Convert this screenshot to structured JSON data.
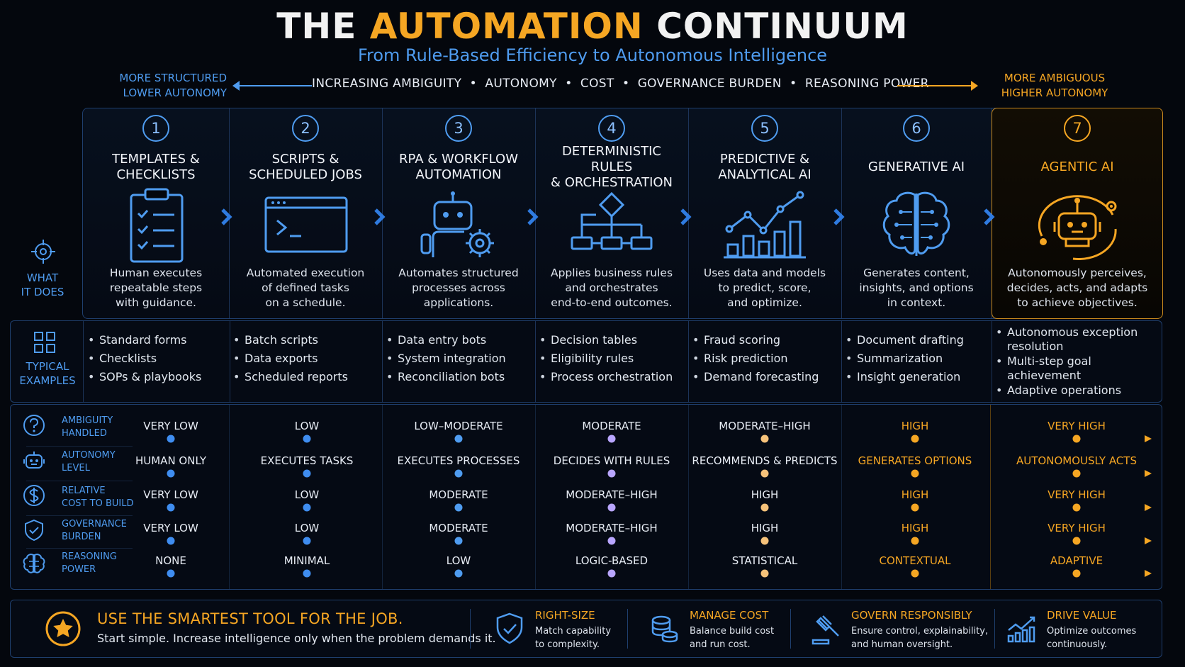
{
  "title": {
    "part1": "THE ",
    "part2": "AUTOMATION",
    "part3": " CONTINUUM"
  },
  "subtitle": "From Rule-Based Efficiency to Autonomous Intelligence",
  "axis": {
    "left": [
      "MORE STRUCTURED",
      "LOWER AUTONOMY"
    ],
    "middle": "INCREASING AMBIGUITY  •  AUTONOMY  •  COST  •  GOVERNANCE BURDEN  •  REASONING POWER",
    "right": [
      "MORE AMBIGUOUS",
      "HIGHER AUTONOMY"
    ]
  },
  "row_labels": {
    "what_it_does": [
      "WHAT",
      "IT DOES"
    ],
    "typical_examples": [
      "TYPICAL",
      "EXAMPLES"
    ]
  },
  "stages": [
    {
      "num": "1",
      "name": [
        "TEMPLATES &",
        "CHECKLISTS"
      ],
      "icon": "clipboard-checklist-icon",
      "desc": [
        "Human executes",
        "repeatable steps",
        "with guidance."
      ],
      "examples": [
        "Standard forms",
        "Checklists",
        "SOPs & playbooks"
      ]
    },
    {
      "num": "2",
      "name": [
        "SCRIPTS &",
        "SCHEDULED JOBS"
      ],
      "icon": "terminal-window-icon",
      "desc": [
        "Automated execution",
        "of defined tasks",
        "on a schedule."
      ],
      "examples": [
        "Batch scripts",
        "Data exports",
        "Scheduled reports"
      ]
    },
    {
      "num": "3",
      "name": [
        "RPA & WORKFLOW",
        "AUTOMATION"
      ],
      "icon": "robot-gear-icon",
      "desc": [
        "Automates structured",
        "processes across",
        "applications."
      ],
      "examples": [
        "Data entry bots",
        "System integration",
        "Reconciliation bots"
      ]
    },
    {
      "num": "4",
      "name": [
        "DETERMINISTIC RULES",
        "& ORCHESTRATION"
      ],
      "icon": "flowchart-icon",
      "desc": [
        "Applies business rules",
        "and orchestrates",
        "end-to-end outcomes."
      ],
      "examples": [
        "Decision tables",
        "Eligibility rules",
        "Process orchestration"
      ]
    },
    {
      "num": "5",
      "name": [
        "PREDICTIVE &",
        "ANALYTICAL AI"
      ],
      "icon": "trend-chart-icon",
      "desc": [
        "Uses data and models",
        "to predict, score,",
        "and optimize."
      ],
      "examples": [
        "Fraud scoring",
        "Risk prediction",
        "Demand forecasting"
      ]
    },
    {
      "num": "6",
      "name": [
        "GENERATIVE AI"
      ],
      "icon": "circuit-brain-icon",
      "desc": [
        "Generates content,",
        "insights, and options",
        "in context."
      ],
      "examples": [
        "Document drafting",
        "Summarization",
        "Insight generation"
      ]
    },
    {
      "num": "7",
      "name": [
        "AGENTIC AI"
      ],
      "icon": "agent-robot-icon",
      "desc": [
        "Autonomously perceives,",
        "decides, acts, and adapts",
        "to achieve objectives."
      ],
      "examples": [
        [
          "Autonomous exception",
          "resolution"
        ],
        [
          "Multi-step goal",
          "achievement"
        ],
        [
          "Adaptive operations"
        ]
      ]
    }
  ],
  "metrics": [
    {
      "label": [
        "AMBIGUITY",
        "HANDLED"
      ],
      "icon": "question-circle-icon",
      "values": [
        "VERY LOW",
        "LOW",
        "LOW–MODERATE",
        "MODERATE",
        "MODERATE–HIGH",
        "HIGH",
        "VERY HIGH"
      ]
    },
    {
      "label": [
        "AUTONOMY",
        "LEVEL"
      ],
      "icon": "robot-face-icon",
      "values": [
        "HUMAN ONLY",
        "EXECUTES TASKS",
        "EXECUTES PROCESSES",
        "DECIDES WITH RULES",
        "RECOMMENDS & PREDICTS",
        "GENERATES OPTIONS",
        "AUTONOMOUSLY ACTS"
      ]
    },
    {
      "label": [
        "RELATIVE",
        "COST TO BUILD"
      ],
      "icon": "dollar-circle-icon",
      "values": [
        "VERY LOW",
        "LOW",
        "MODERATE",
        "MODERATE–HIGH",
        "HIGH",
        "HIGH",
        "VERY HIGH"
      ]
    },
    {
      "label": [
        "GOVERNANCE",
        "BURDEN"
      ],
      "icon": "shield-check-icon",
      "values": [
        "VERY LOW",
        "LOW",
        "MODERATE",
        "MODERATE–HIGH",
        "HIGH",
        "HIGH",
        "VERY HIGH"
      ]
    },
    {
      "label": [
        "REASONING",
        "POWER"
      ],
      "icon": "brain-icon",
      "values": [
        "NONE",
        "MINIMAL",
        "LOW",
        "LOGIC-BASED",
        "STATISTICAL",
        "CONTEXTUAL",
        "ADAPTIVE"
      ]
    }
  ],
  "footer": {
    "headline": "USE THE SMARTEST TOOL FOR THE JOB.",
    "sub": "Start simple. Increase intelligence only when the problem demands it.",
    "items": [
      {
        "title": "RIGHT-SIZE",
        "desc": [
          "Match capability",
          "to complexity."
        ],
        "icon": "shield-check-icon"
      },
      {
        "title": "MANAGE COST",
        "desc": [
          "Balance build cost",
          "and run cost."
        ],
        "icon": "coin-stack-icon"
      },
      {
        "title": "GOVERN RESPONSIBLY",
        "desc": [
          "Ensure control, explainability,",
          "and human oversight."
        ],
        "icon": "gavel-icon"
      },
      {
        "title": "DRIVE VALUE",
        "desc": [
          "Optimize outcomes",
          "continuously."
        ],
        "icon": "growth-chart-icon"
      }
    ]
  },
  "colors": {
    "blue": "#4f9cf0",
    "gold": "#f5a623",
    "purple": "#b9a6ff",
    "background": "#04070d"
  }
}
